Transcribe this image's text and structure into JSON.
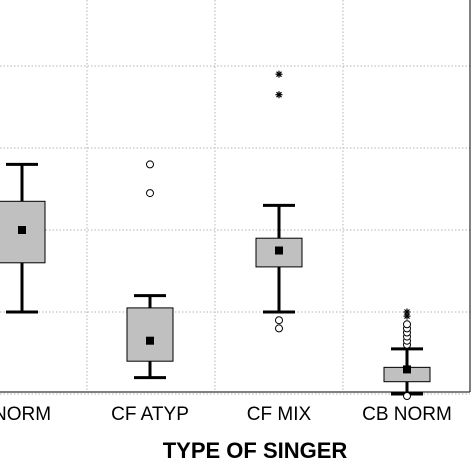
{
  "chart_data": {
    "type": "box",
    "xlabel": "TYPE OF SINGER",
    "ylabel": "",
    "categories": [
      "NORM",
      "CF ATYP",
      "CF MIX",
      "CB NORM"
    ],
    "ylim": [
      0,
      10
    ],
    "y_gridlines": [
      1,
      3,
      5,
      7,
      9
    ],
    "grid": true,
    "boxes": [
      {
        "category": "NORM",
        "whisker_low": 3.0,
        "q1": 4.2,
        "mean": 5.0,
        "q3": 5.7,
        "whisker_high": 6.6,
        "outliers_circle": [],
        "extremes_star": []
      },
      {
        "category": "CF ATYP",
        "whisker_low": 1.4,
        "q1": 1.8,
        "mean": 2.3,
        "q3": 3.1,
        "whisker_high": 3.4,
        "outliers_circle": [
          5.9,
          6.6
        ],
        "extremes_star": []
      },
      {
        "category": "CF MIX",
        "whisker_low": 3.0,
        "q1": 4.1,
        "mean": 4.5,
        "q3": 4.8,
        "whisker_high": 5.6,
        "outliers_circle": [
          2.6,
          2.8
        ],
        "extremes_star": [
          8.3,
          8.8
        ]
      },
      {
        "category": "CB NORM",
        "whisker_low": 1.0,
        "q1": 1.3,
        "mean": 1.6,
        "q3": 1.65,
        "whisker_high": 2.1,
        "outliers_circle": [
          0.95,
          2.2,
          2.3,
          2.4,
          2.5,
          2.6,
          2.7
        ],
        "extremes_star": [
          2.9,
          3.0
        ]
      }
    ]
  }
}
